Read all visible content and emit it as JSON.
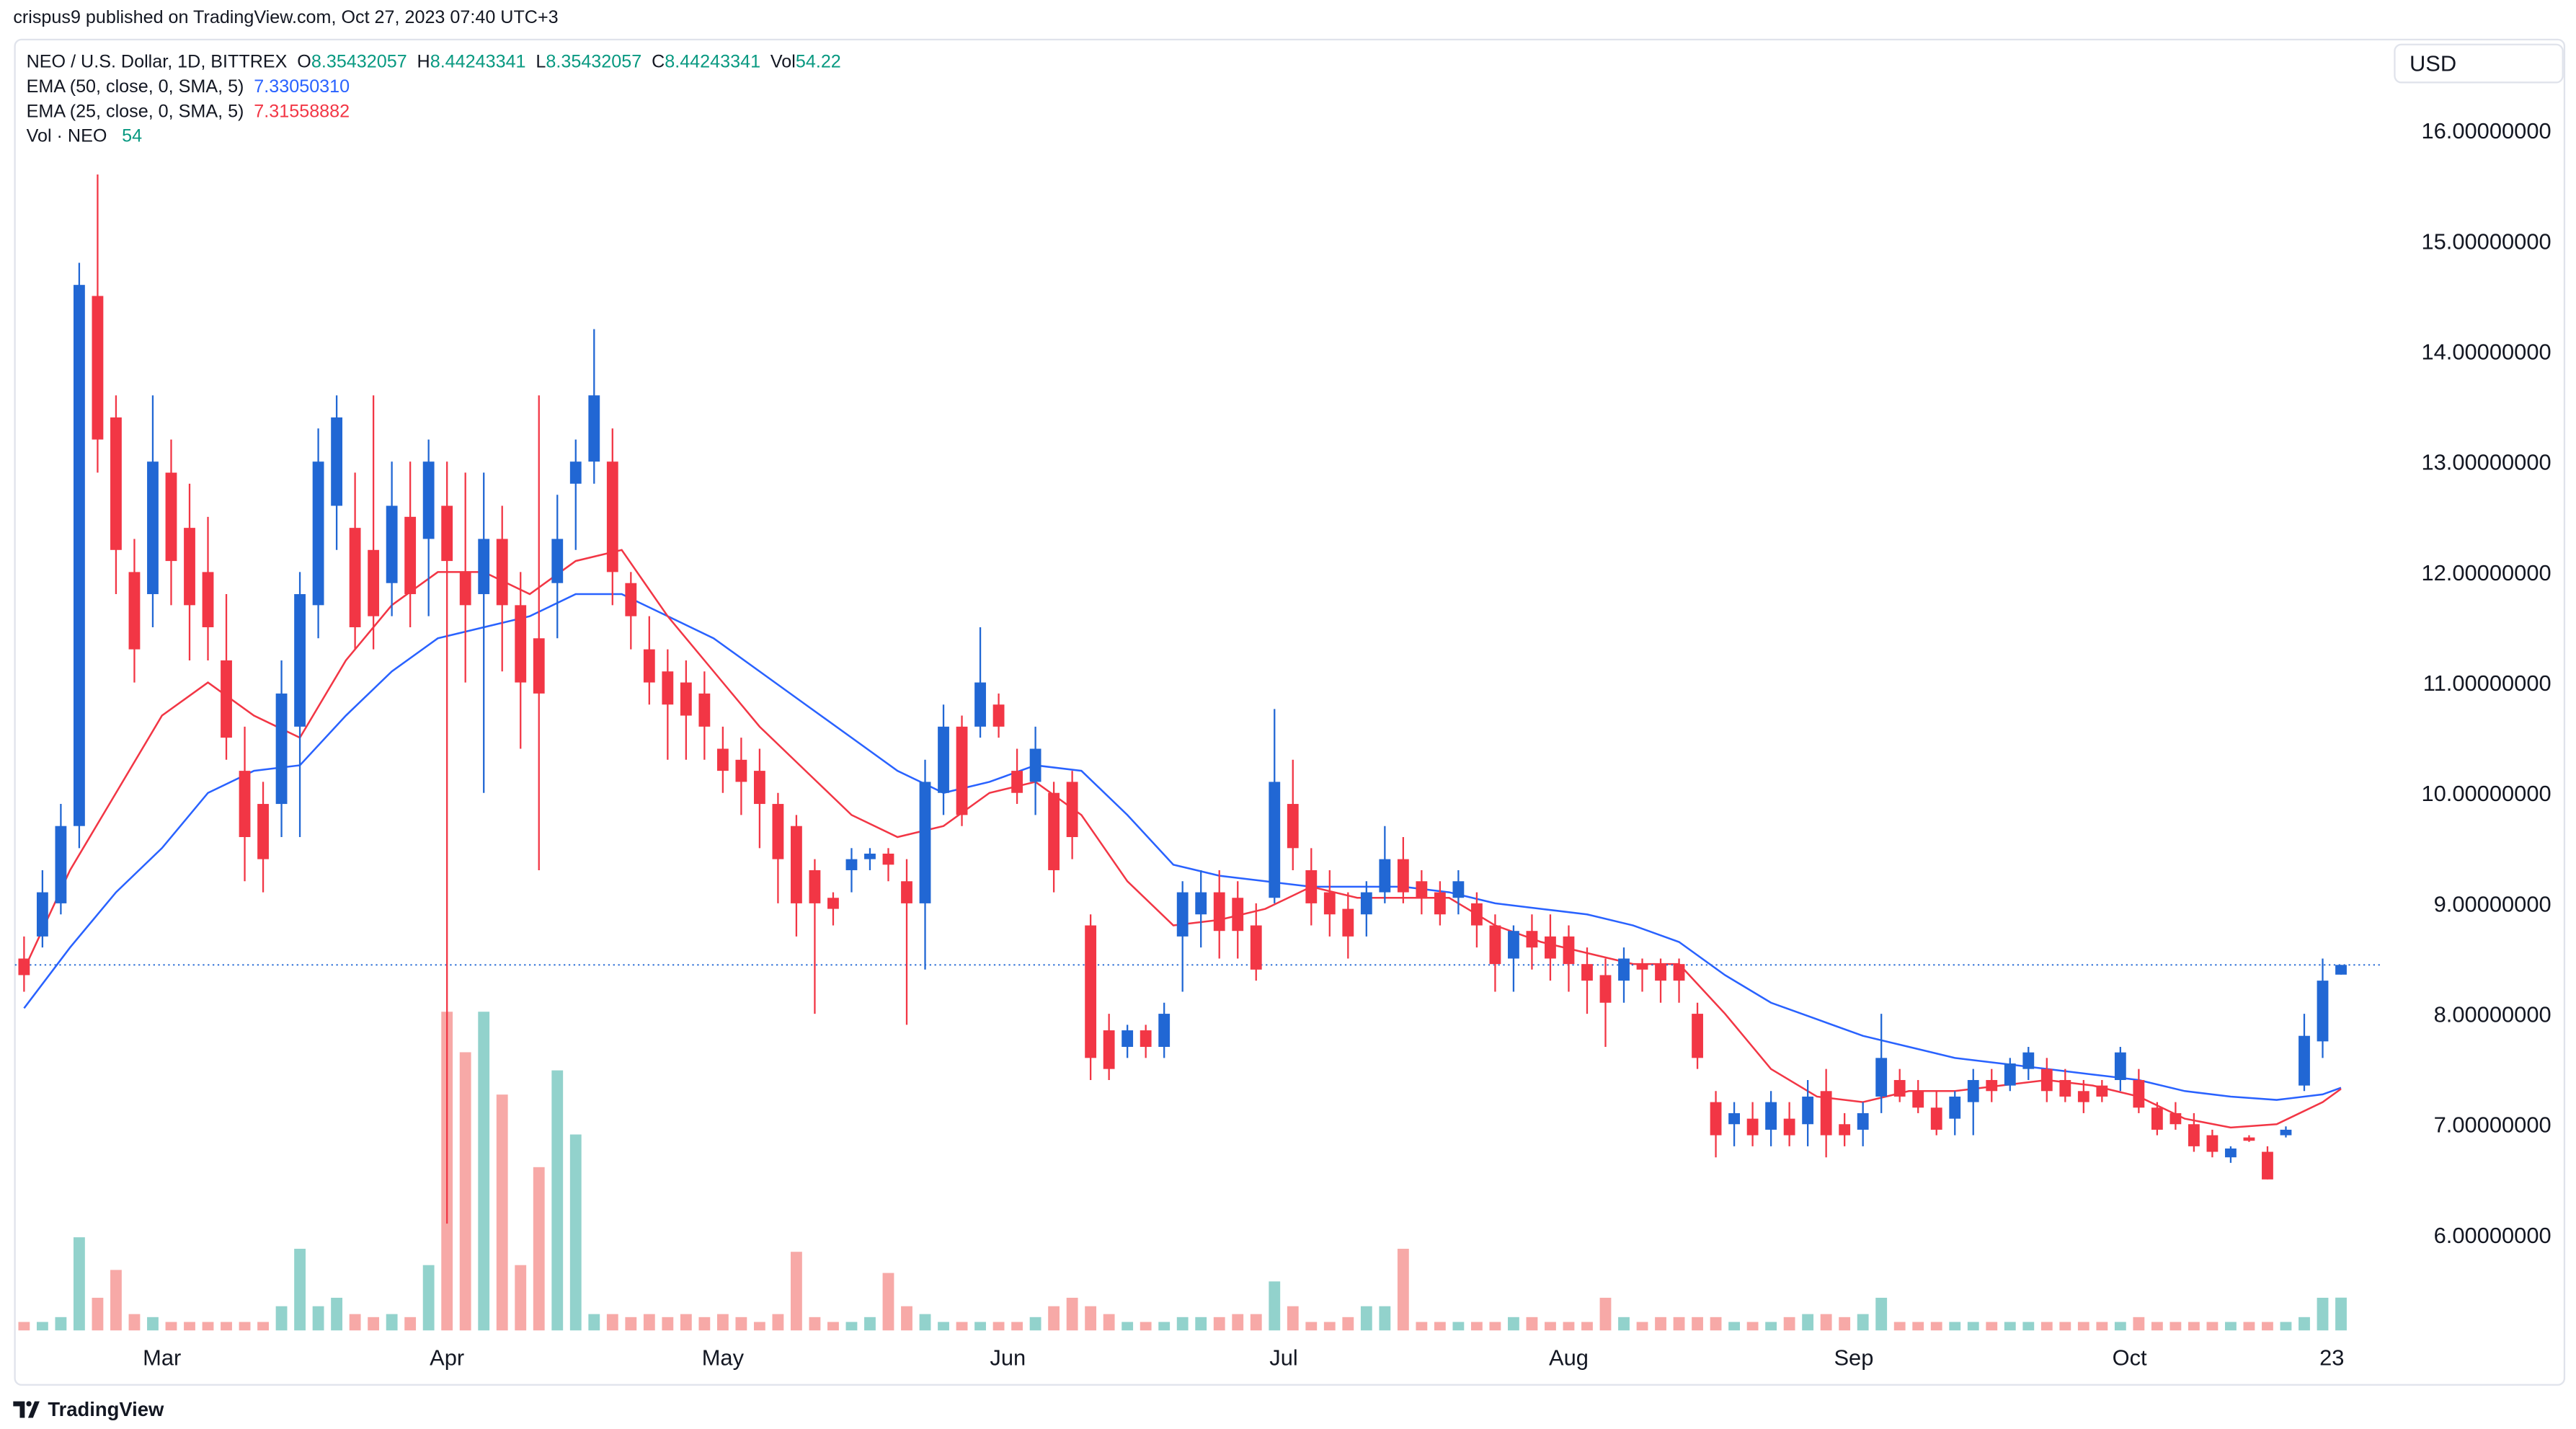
{
  "header": {
    "publisher": "crispus9 published on TradingView.com, Oct 27, 2023 07:40 UTC+3",
    "currency": "USD"
  },
  "footer": {
    "brand": "TradingView"
  },
  "chart_data": {
    "type": "candlestick",
    "legend": {
      "symbol": "NEO / U.S. Dollar, 1D, BITTREX",
      "labels": [
        "O",
        "H",
        "L",
        "C",
        "Vol"
      ],
      "values": [
        "8.35432057",
        "8.44243341",
        "8.35432057",
        "8.44243341",
        "54.22"
      ],
      "volume_name": "Vol · NEO",
      "volume_last_label": "54"
    },
    "up_color": "#2167d4",
    "down_color": "#f23645",
    "volume_up_color": "#92d2cc",
    "volume_down_color": "#f7a9a7",
    "x": [
      45,
      47,
      49,
      51,
      53,
      55,
      57,
      59,
      61,
      63,
      65,
      67,
      69,
      71,
      73,
      75,
      77,
      79,
      81,
      83,
      85,
      87,
      89,
      91,
      93,
      95,
      97,
      99,
      101,
      103,
      105,
      107,
      109,
      111,
      113,
      115,
      117,
      119,
      121,
      123,
      125,
      127,
      129,
      131,
      133,
      135,
      137,
      139,
      141,
      143,
      145,
      147,
      149,
      151,
      153,
      155,
      157,
      159,
      161,
      163,
      165,
      167,
      169,
      171,
      173,
      175,
      177,
      179,
      181,
      183,
      185,
      187,
      189,
      191,
      193,
      195,
      197,
      199,
      201,
      203,
      205,
      207,
      209,
      211,
      213,
      215,
      217,
      219,
      221,
      223,
      225,
      227,
      229,
      231,
      233,
      235,
      237,
      239,
      241,
      243,
      245,
      247,
      249,
      251,
      253,
      255,
      257,
      259,
      261,
      263,
      265,
      267,
      269,
      271,
      273,
      275,
      277,
      279,
      281,
      283,
      285,
      287,
      289,
      291,
      293,
      295,
      297
    ],
    "open": [
      8.5,
      8.7,
      9.0,
      9.7,
      14.5,
      13.4,
      12.0,
      11.8,
      12.9,
      12.4,
      12.0,
      11.2,
      10.2,
      9.9,
      9.9,
      10.6,
      11.7,
      12.6,
      12.4,
      12.2,
      11.9,
      12.5,
      12.3,
      12.6,
      12.0,
      11.8,
      12.3,
      11.7,
      11.4,
      11.9,
      12.8,
      13.0,
      13.0,
      11.9,
      11.3,
      11.1,
      11.0,
      10.9,
      10.4,
      10.3,
      10.2,
      9.9,
      9.7,
      9.3,
      9.05,
      9.3,
      9.4,
      9.45,
      9.2,
      9.0,
      10.0,
      10.6,
      10.6,
      10.8,
      10.2,
      10.1,
      10.0,
      10.1,
      8.8,
      7.85,
      7.7,
      7.85,
      7.7,
      8.7,
      8.9,
      9.1,
      9.05,
      8.8,
      9.05,
      9.9,
      9.3,
      9.1,
      8.95,
      8.9,
      9.1,
      9.4,
      9.2,
      9.1,
      9.05,
      9.0,
      8.8,
      8.5,
      8.75,
      8.7,
      8.7,
      8.45,
      8.35,
      8.3,
      8.45,
      8.45,
      8.45,
      8.0,
      7.2,
      7.0,
      7.05,
      6.95,
      7.05,
      7.0,
      7.3,
      7.0,
      6.95,
      7.25,
      7.4,
      7.3,
      7.15,
      7.05,
      7.2,
      7.4,
      7.35,
      7.5,
      7.5,
      7.4,
      7.3,
      7.35,
      7.4,
      7.4,
      7.15,
      7.1,
      7.0,
      6.9,
      6.7,
      6.88,
      6.75,
      6.9,
      7.35,
      7.75,
      8.35432057
    ],
    "high": [
      8.7,
      9.3,
      9.9,
      14.8,
      15.6,
      13.6,
      12.3,
      13.6,
      13.2,
      12.8,
      12.5,
      11.8,
      10.6,
      10.1,
      11.2,
      12.0,
      13.3,
      13.6,
      12.9,
      13.6,
      13.0,
      13.0,
      13.2,
      13.0,
      12.9,
      12.9,
      12.6,
      12.0,
      13.6,
      12.7,
      13.2,
      14.2,
      13.3,
      12.0,
      11.6,
      11.3,
      11.2,
      11.1,
      10.6,
      10.5,
      10.4,
      10.0,
      9.8,
      9.4,
      9.1,
      9.5,
      9.5,
      9.5,
      9.4,
      10.3,
      10.8,
      10.7,
      11.5,
      10.9,
      10.4,
      10.6,
      10.1,
      10.2,
      8.9,
      8.0,
      7.9,
      7.9,
      8.1,
      9.2,
      9.3,
      9.3,
      9.2,
      9.0,
      10.76,
      10.3,
      9.5,
      9.3,
      9.1,
      9.2,
      9.7,
      9.6,
      9.3,
      9.2,
      9.3,
      9.1,
      8.9,
      8.8,
      8.9,
      8.9,
      8.8,
      8.6,
      8.5,
      8.6,
      8.5,
      8.5,
      8.5,
      8.1,
      7.3,
      7.2,
      7.2,
      7.3,
      7.2,
      7.4,
      7.5,
      7.1,
      7.2,
      8.0,
      7.5,
      7.4,
      7.3,
      7.3,
      7.5,
      7.5,
      7.6,
      7.7,
      7.6,
      7.5,
      7.4,
      7.4,
      7.7,
      7.5,
      7.2,
      7.2,
      7.1,
      6.95,
      6.8,
      6.9,
      6.8,
      6.98,
      8.0,
      8.5,
      8.44243341
    ],
    "low": [
      8.2,
      8.6,
      8.9,
      9.5,
      12.9,
      11.8,
      11.0,
      11.5,
      11.7,
      11.2,
      11.2,
      10.3,
      9.2,
      9.1,
      9.6,
      9.6,
      11.4,
      12.2,
      11.3,
      11.3,
      11.6,
      11.5,
      11.6,
      6.1,
      11.0,
      10.0,
      11.1,
      10.4,
      9.3,
      11.4,
      12.2,
      12.8,
      11.7,
      11.3,
      10.8,
      10.3,
      10.3,
      10.3,
      10.0,
      9.8,
      9.5,
      9.0,
      8.7,
      8.0,
      8.8,
      9.1,
      9.3,
      9.2,
      7.9,
      8.4,
      9.8,
      9.7,
      10.5,
      10.5,
      9.9,
      9.8,
      9.1,
      9.4,
      7.4,
      7.4,
      7.6,
      7.6,
      7.6,
      8.2,
      8.6,
      8.5,
      8.5,
      8.3,
      9.0,
      9.3,
      8.8,
      8.7,
      8.5,
      8.7,
      9.0,
      9.0,
      8.9,
      8.8,
      8.9,
      8.6,
      8.2,
      8.2,
      8.4,
      8.3,
      8.2,
      8.0,
      7.7,
      8.1,
      8.2,
      8.1,
      8.1,
      7.5,
      6.7,
      6.8,
      6.8,
      6.8,
      6.8,
      6.8,
      6.7,
      6.8,
      6.8,
      7.1,
      7.2,
      7.1,
      6.9,
      6.9,
      6.9,
      7.2,
      7.3,
      7.4,
      7.2,
      7.2,
      7.1,
      7.2,
      7.3,
      7.1,
      6.9,
      6.95,
      6.75,
      6.7,
      6.65,
      6.84,
      6.5,
      6.88,
      7.3,
      7.6,
      8.35432057
    ],
    "close": [
      8.35,
      9.1,
      9.7,
      14.6,
      13.2,
      12.2,
      11.3,
      13.0,
      12.1,
      11.7,
      11.5,
      10.5,
      9.6,
      9.4,
      10.9,
      11.8,
      13.0,
      13.4,
      11.5,
      11.6,
      12.6,
      11.8,
      13.0,
      12.1,
      11.7,
      12.3,
      11.7,
      11.0,
      10.9,
      12.3,
      13.0,
      13.6,
      12.0,
      11.6,
      11.0,
      10.8,
      10.7,
      10.6,
      10.2,
      10.1,
      9.9,
      9.4,
      9.0,
      9.0,
      8.95,
      9.4,
      9.45,
      9.35,
      9.0,
      10.1,
      10.6,
      9.8,
      11.0,
      10.6,
      10.0,
      10.4,
      9.3,
      9.6,
      7.6,
      7.5,
      7.85,
      7.7,
      8.0,
      9.1,
      9.1,
      8.75,
      8.75,
      8.4,
      10.1,
      9.5,
      9.0,
      8.9,
      8.7,
      9.1,
      9.4,
      9.1,
      9.05,
      8.9,
      9.2,
      8.8,
      8.45,
      8.75,
      8.6,
      8.5,
      8.45,
      8.3,
      8.1,
      8.5,
      8.4,
      8.3,
      8.3,
      7.6,
      6.9,
      7.1,
      6.9,
      7.2,
      6.9,
      7.25,
      6.9,
      6.9,
      7.1,
      7.6,
      7.25,
      7.15,
      6.95,
      7.25,
      7.4,
      7.3,
      7.55,
      7.65,
      7.3,
      7.25,
      7.2,
      7.25,
      7.65,
      7.15,
      6.95,
      7.0,
      6.8,
      6.75,
      6.78,
      6.85,
      6.5,
      6.95,
      7.8,
      8.3,
      8.44243341
    ],
    "volume": [
      14,
      14,
      22,
      154,
      54,
      100,
      27,
      22,
      14,
      14,
      14,
      14,
      14,
      14,
      40,
      135,
      40,
      54,
      27,
      22,
      27,
      22,
      108,
      527,
      460,
      527,
      390,
      108,
      270,
      430,
      324,
      27,
      27,
      22,
      27,
      22,
      27,
      22,
      27,
      22,
      14,
      27,
      130,
      22,
      14,
      14,
      22,
      95,
      40,
      27,
      14,
      14,
      14,
      14,
      14,
      22,
      40,
      54,
      40,
      27,
      14,
      14,
      14,
      22,
      22,
      22,
      27,
      27,
      81,
      40,
      14,
      14,
      22,
      40,
      40,
      135,
      14,
      14,
      14,
      14,
      14,
      22,
      22,
      14,
      14,
      14,
      54,
      22,
      14,
      22,
      22,
      22,
      22,
      14,
      14,
      14,
      22,
      27,
      27,
      22,
      27,
      54,
      14,
      14,
      14,
      14,
      14,
      14,
      14,
      14,
      14,
      14,
      14,
      14,
      14,
      22,
      14,
      14,
      14,
      14,
      14,
      14,
      14,
      14,
      22,
      54,
      54.22
    ],
    "series": [
      {
        "name": "EMA (50, close, 0, SMA, 5)",
        "last_label": "7.33050310",
        "color": "#2962ff",
        "x": [
          45,
          50,
          55,
          60,
          65,
          70,
          75,
          80,
          85,
          90,
          95,
          100,
          105,
          110,
          115,
          120,
          125,
          130,
          135,
          140,
          145,
          150,
          155,
          160,
          165,
          170,
          175,
          180,
          185,
          190,
          195,
          200,
          205,
          210,
          215,
          220,
          225,
          230,
          235,
          240,
          245,
          250,
          255,
          260,
          265,
          270,
          275,
          280,
          285,
          290,
          295,
          297
        ],
        "values": [
          8.05,
          8.6,
          9.1,
          9.5,
          10.0,
          10.2,
          10.25,
          10.7,
          11.1,
          11.4,
          11.5,
          11.6,
          11.8,
          11.8,
          11.6,
          11.4,
          11.1,
          10.8,
          10.5,
          10.2,
          10.0,
          10.1,
          10.25,
          10.2,
          9.8,
          9.35,
          9.25,
          9.2,
          9.15,
          9.15,
          9.15,
          9.1,
          9.0,
          8.95,
          8.9,
          8.8,
          8.65,
          8.35,
          8.1,
          7.95,
          7.8,
          7.7,
          7.6,
          7.55,
          7.5,
          7.45,
          7.4,
          7.3,
          7.25,
          7.22,
          7.27,
          7.33
        ]
      },
      {
        "name": "EMA (25, close, 0, SMA, 5)",
        "last_label": "7.31558882",
        "color": "#f23645",
        "x": [
          45,
          50,
          55,
          60,
          65,
          70,
          75,
          80,
          85,
          90,
          95,
          100,
          105,
          110,
          115,
          120,
          125,
          130,
          135,
          140,
          145,
          150,
          155,
          160,
          165,
          170,
          175,
          180,
          185,
          190,
          195,
          200,
          205,
          210,
          215,
          220,
          225,
          230,
          235,
          240,
          245,
          250,
          255,
          260,
          265,
          270,
          275,
          280,
          285,
          290,
          295,
          297
        ],
        "values": [
          8.4,
          9.3,
          10.0,
          10.7,
          11.0,
          10.7,
          10.5,
          11.2,
          11.7,
          12.0,
          12.0,
          11.8,
          12.1,
          12.2,
          11.6,
          11.1,
          10.6,
          10.2,
          9.8,
          9.6,
          9.7,
          10.0,
          10.1,
          9.8,
          9.2,
          8.8,
          8.85,
          8.95,
          9.15,
          9.05,
          9.05,
          9.05,
          8.8,
          8.65,
          8.55,
          8.45,
          8.45,
          8.0,
          7.5,
          7.25,
          7.2,
          7.3,
          7.3,
          7.35,
          7.4,
          7.35,
          7.25,
          7.05,
          6.97,
          7.0,
          7.2,
          7.32
        ]
      }
    ],
    "xlim": [
      44,
      301.4
    ],
    "ylim": [
      4.64,
      17.18
    ],
    "vlim": [
      0,
      2200
    ],
    "xticks": [
      {
        "value": 60,
        "label": "Mar"
      },
      {
        "value": 91,
        "label": "Apr"
      },
      {
        "value": 121,
        "label": "May"
      },
      {
        "value": 152,
        "label": "Jun"
      },
      {
        "value": 182,
        "label": "Jul"
      },
      {
        "value": 213,
        "label": "Aug"
      },
      {
        "value": 244,
        "label": "Sep"
      },
      {
        "value": 274,
        "label": "Oct"
      },
      {
        "value": 296,
        "label": "23"
      }
    ],
    "yticks": [
      {
        "value": 6,
        "label": "6.00000000"
      },
      {
        "value": 7,
        "label": "7.00000000"
      },
      {
        "value": 8,
        "label": "8.00000000"
      },
      {
        "value": 9,
        "label": "9.00000000"
      },
      {
        "value": 10,
        "label": "10.00000000"
      },
      {
        "value": 11,
        "label": "11.00000000"
      },
      {
        "value": 12,
        "label": "12.00000000"
      },
      {
        "value": 13,
        "label": "13.00000000"
      },
      {
        "value": 14,
        "label": "14.00000000"
      },
      {
        "value": 15,
        "label": "15.00000000"
      },
      {
        "value": 16,
        "label": "16.00000000"
      }
    ],
    "grid": false,
    "price_line": true
  }
}
